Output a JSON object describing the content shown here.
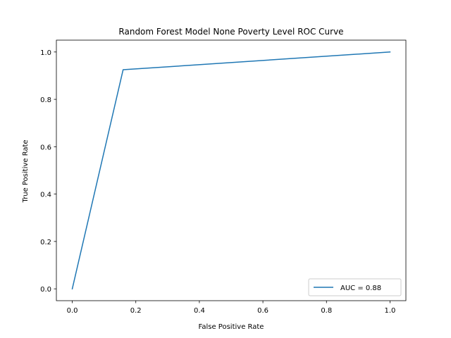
{
  "chart_data": {
    "type": "line",
    "title": "Random Forest Model None Poverty Level ROC Curve",
    "xlabel": "False Positive Rate",
    "ylabel": "True Positive Rate",
    "xlim": [
      -0.05,
      1.05
    ],
    "ylim": [
      -0.05,
      1.05
    ],
    "xticks": [
      0.0,
      0.2,
      0.4,
      0.6,
      0.8,
      1.0
    ],
    "xtick_labels": [
      "0.0",
      "0.2",
      "0.4",
      "0.6",
      "0.8",
      "1.0"
    ],
    "yticks": [
      0.0,
      0.2,
      0.4,
      0.6,
      0.8,
      1.0
    ],
    "ytick_labels": [
      "0.0",
      "0.2",
      "0.4",
      "0.6",
      "0.8",
      "1.0"
    ],
    "grid": false,
    "legend_position": "lower right",
    "series": [
      {
        "name": "AUC = 0.88",
        "color": "#1f77b4",
        "x": [
          0.0,
          0.16,
          1.0
        ],
        "y": [
          0.0,
          0.925,
          1.0
        ]
      }
    ]
  }
}
